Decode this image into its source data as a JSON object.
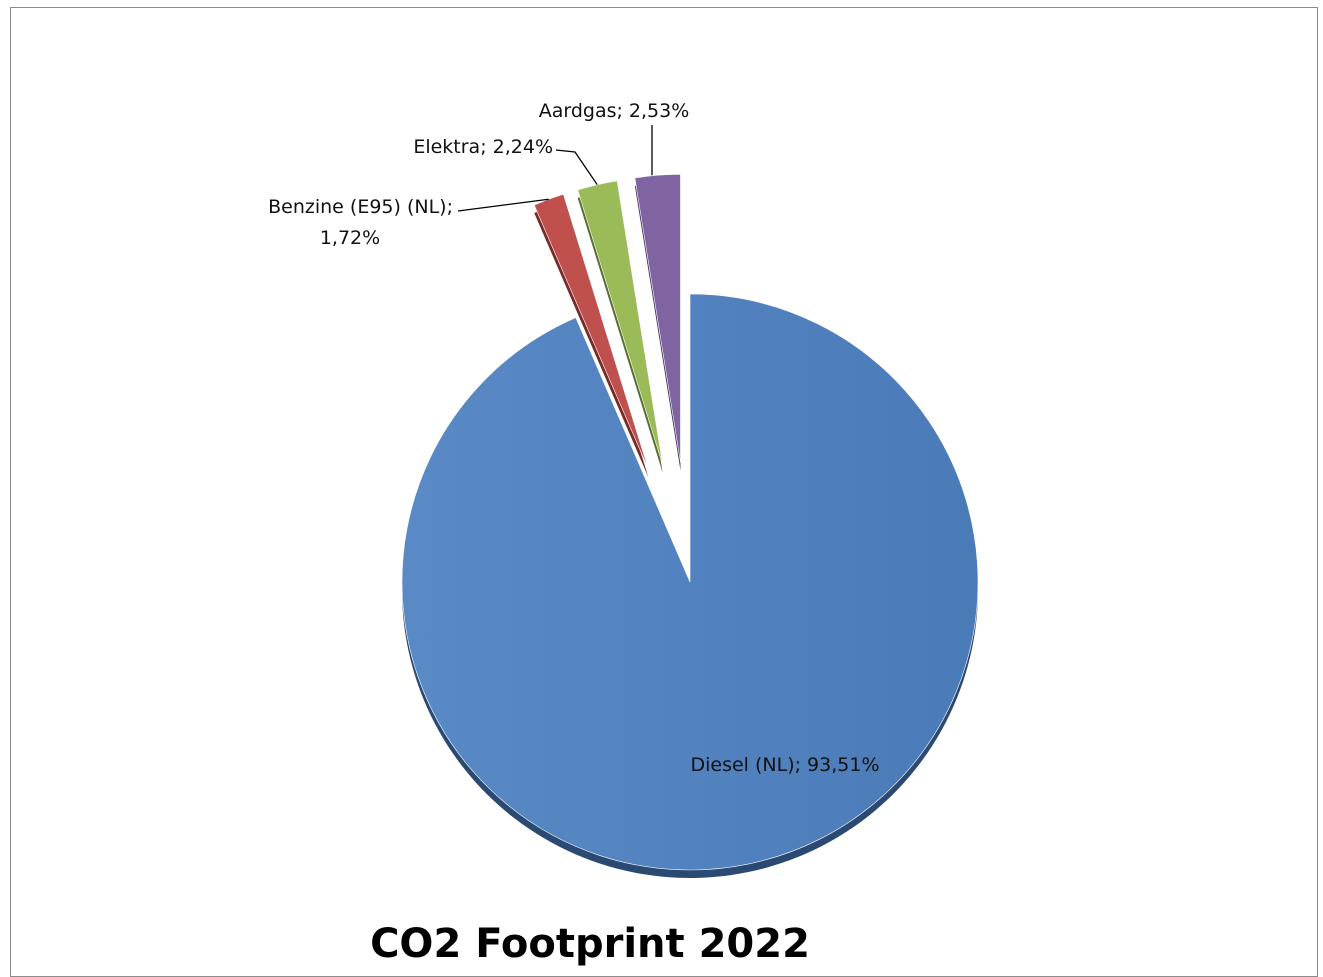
{
  "chart_data": {
    "type": "pie",
    "title": "CO2 Footprint 2022",
    "slices": [
      {
        "name": "Diesel (NL)",
        "value": 93.51,
        "label": "Diesel (NL); 93,51%",
        "color": "#4f81bd",
        "side": "#2b4a73"
      },
      {
        "name": "Benzine (E95) (NL)",
        "value": 1.72,
        "label_lines": [
          "Benzine (E95) (NL);",
          "1,72%"
        ],
        "color": "#c0504d",
        "side": "#772c2a"
      },
      {
        "name": "Elektra",
        "value": 2.24,
        "label": "Elektra; 2,24%",
        "color": "#9bbb59",
        "side": "#5a7032"
      },
      {
        "name": "Aardgas",
        "value": 2.53,
        "label": "Aardgas; 2,53%",
        "color": "#8064a2",
        "side": "#4a3862"
      }
    ],
    "legend": "none",
    "style": "3d-exploded"
  }
}
